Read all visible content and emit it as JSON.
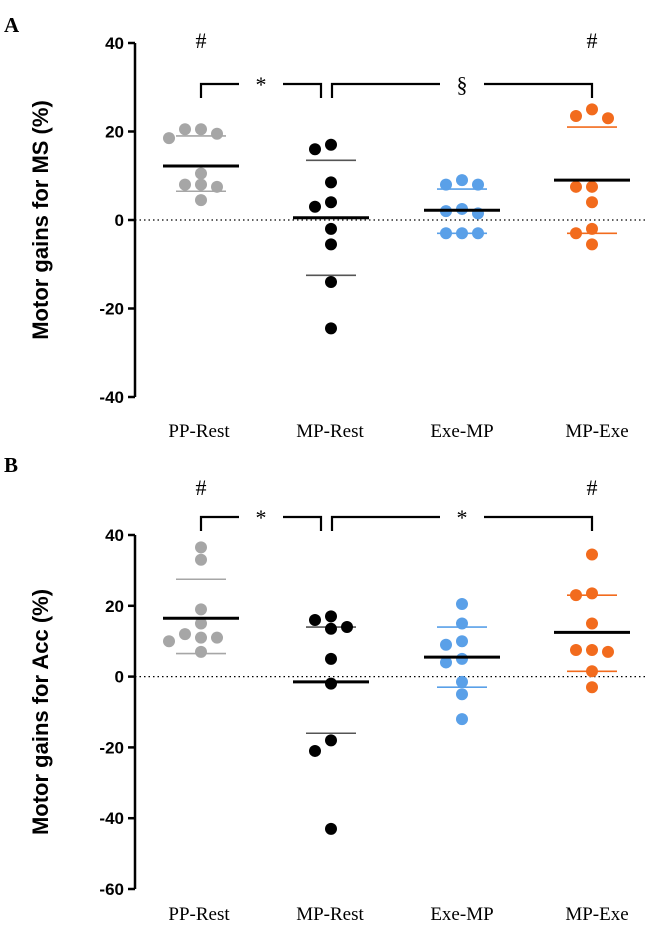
{
  "chart_data": [
    {
      "type": "scatter",
      "panel": "A",
      "ylabel": "Motor gains for MS (%)",
      "ylim": [
        -40,
        40
      ],
      "yticks": [
        -40,
        -20,
        0,
        20,
        40
      ],
      "categories": [
        "PP-Rest",
        "MP-Rest",
        "Exe-MP",
        "MP-Exe"
      ],
      "colors": [
        "#a6a6a6",
        "#000000",
        "#5aa0e8",
        "#f26b1d"
      ],
      "series": [
        {
          "category": "PP-Rest",
          "points": [
            20.5,
            20.5,
            19.5,
            18.5,
            10.5,
            8.0,
            8.0,
            7.5,
            4.5
          ],
          "mean": 12.2,
          "sd_upper": 19.0,
          "sd_lower": 6.5
        },
        {
          "category": "MP-Rest",
          "points": [
            17.0,
            16.0,
            8.5,
            4.0,
            3.0,
            -2.0,
            -5.5,
            -14.0,
            -24.5
          ],
          "mean": 0.5,
          "sd_upper": 13.5,
          "sd_lower": -12.5
        },
        {
          "category": "Exe-MP",
          "points": [
            9.0,
            8.0,
            8.0,
            2.5,
            2.0,
            1.5,
            -3.0,
            -3.0,
            -3.0
          ],
          "mean": 2.2,
          "sd_upper": 7.0,
          "sd_lower": -3.0
        },
        {
          "category": "MP-Exe",
          "points": [
            25.0,
            23.5,
            23.0,
            7.5,
            7.5,
            4.0,
            -2.0,
            -3.0,
            -5.5
          ],
          "mean": 9.0,
          "sd_upper": 21.0,
          "sd_lower": -3.0
        }
      ],
      "annotations": [
        {
          "text": "#",
          "category": "PP-Rest"
        },
        {
          "text": "#",
          "category": "MP-Exe"
        },
        {
          "text": "*",
          "from": "PP-Rest",
          "to": "MP-Rest"
        },
        {
          "text": "§",
          "from": "MP-Rest",
          "to": "MP-Exe"
        }
      ]
    },
    {
      "type": "scatter",
      "panel": "B",
      "ylabel": "Motor gains for Acc (%)",
      "ylim": [
        -60,
        40
      ],
      "yticks": [
        -60,
        -40,
        -20,
        0,
        20,
        40
      ],
      "categories": [
        "PP-Rest",
        "MP-Rest",
        "Exe-MP",
        "MP-Exe"
      ],
      "colors": [
        "#a6a6a6",
        "#000000",
        "#5aa0e8",
        "#f26b1d"
      ],
      "series": [
        {
          "category": "PP-Rest",
          "points": [
            36.5,
            33.0,
            19.0,
            15.0,
            12.0,
            11.0,
            11.0,
            10.0,
            7.0
          ],
          "mean": 16.5,
          "sd_upper": 27.5,
          "sd_lower": 6.5
        },
        {
          "category": "MP-Rest",
          "points": [
            17.0,
            16.0,
            14.0,
            13.5,
            5.0,
            -2.0,
            -18.0,
            -21.0,
            -43.0
          ],
          "mean": -1.5,
          "sd_upper": 14.0,
          "sd_lower": -16.0
        },
        {
          "category": "Exe-MP",
          "points": [
            20.5,
            15.0,
            10.0,
            9.0,
            5.0,
            4.0,
            -1.5,
            -5.0,
            -12.0
          ],
          "mean": 5.5,
          "sd_upper": 14.0,
          "sd_lower": -3.0
        },
        {
          "category": "MP-Exe",
          "points": [
            34.5,
            23.5,
            23.0,
            15.0,
            7.5,
            7.5,
            7.0,
            1.5,
            -3.0
          ],
          "mean": 12.5,
          "sd_upper": 23.0,
          "sd_lower": 1.5
        }
      ],
      "annotations": [
        {
          "text": "#",
          "category": "PP-Rest"
        },
        {
          "text": "#",
          "category": "MP-Exe"
        },
        {
          "text": "*",
          "from": "PP-Rest",
          "to": "MP-Rest"
        },
        {
          "text": "*",
          "from": "MP-Rest",
          "to": "MP-Exe"
        }
      ]
    }
  ]
}
